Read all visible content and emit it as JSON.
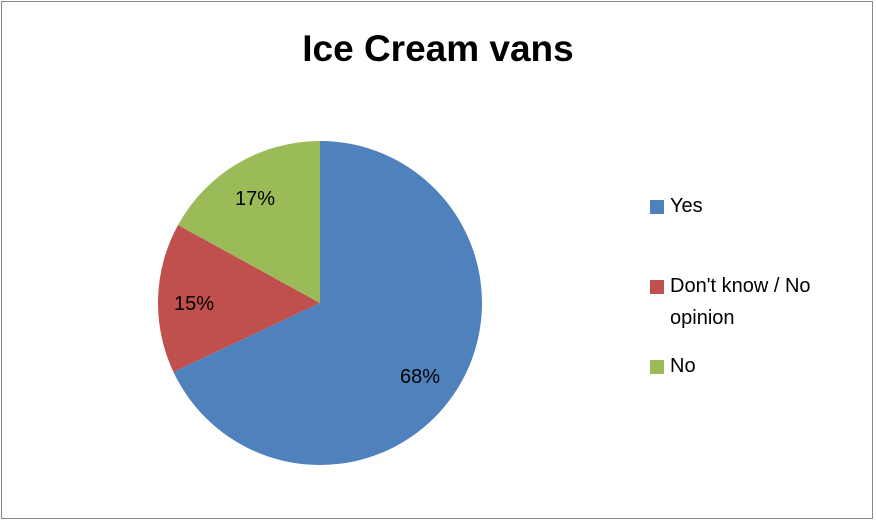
{
  "chart_data": {
    "type": "pie",
    "title": "Ice Cream vans",
    "slices": [
      {
        "label": "Yes",
        "value": 68,
        "display": "68%",
        "color": "#4F81BD"
      },
      {
        "label": "Don't know / No opinion",
        "value": 15,
        "display": "15%",
        "color": "#C0504D"
      },
      {
        "label": "No",
        "value": 17,
        "display": "17%",
        "color": "#9BBB59"
      }
    ],
    "legend_position": "right"
  }
}
